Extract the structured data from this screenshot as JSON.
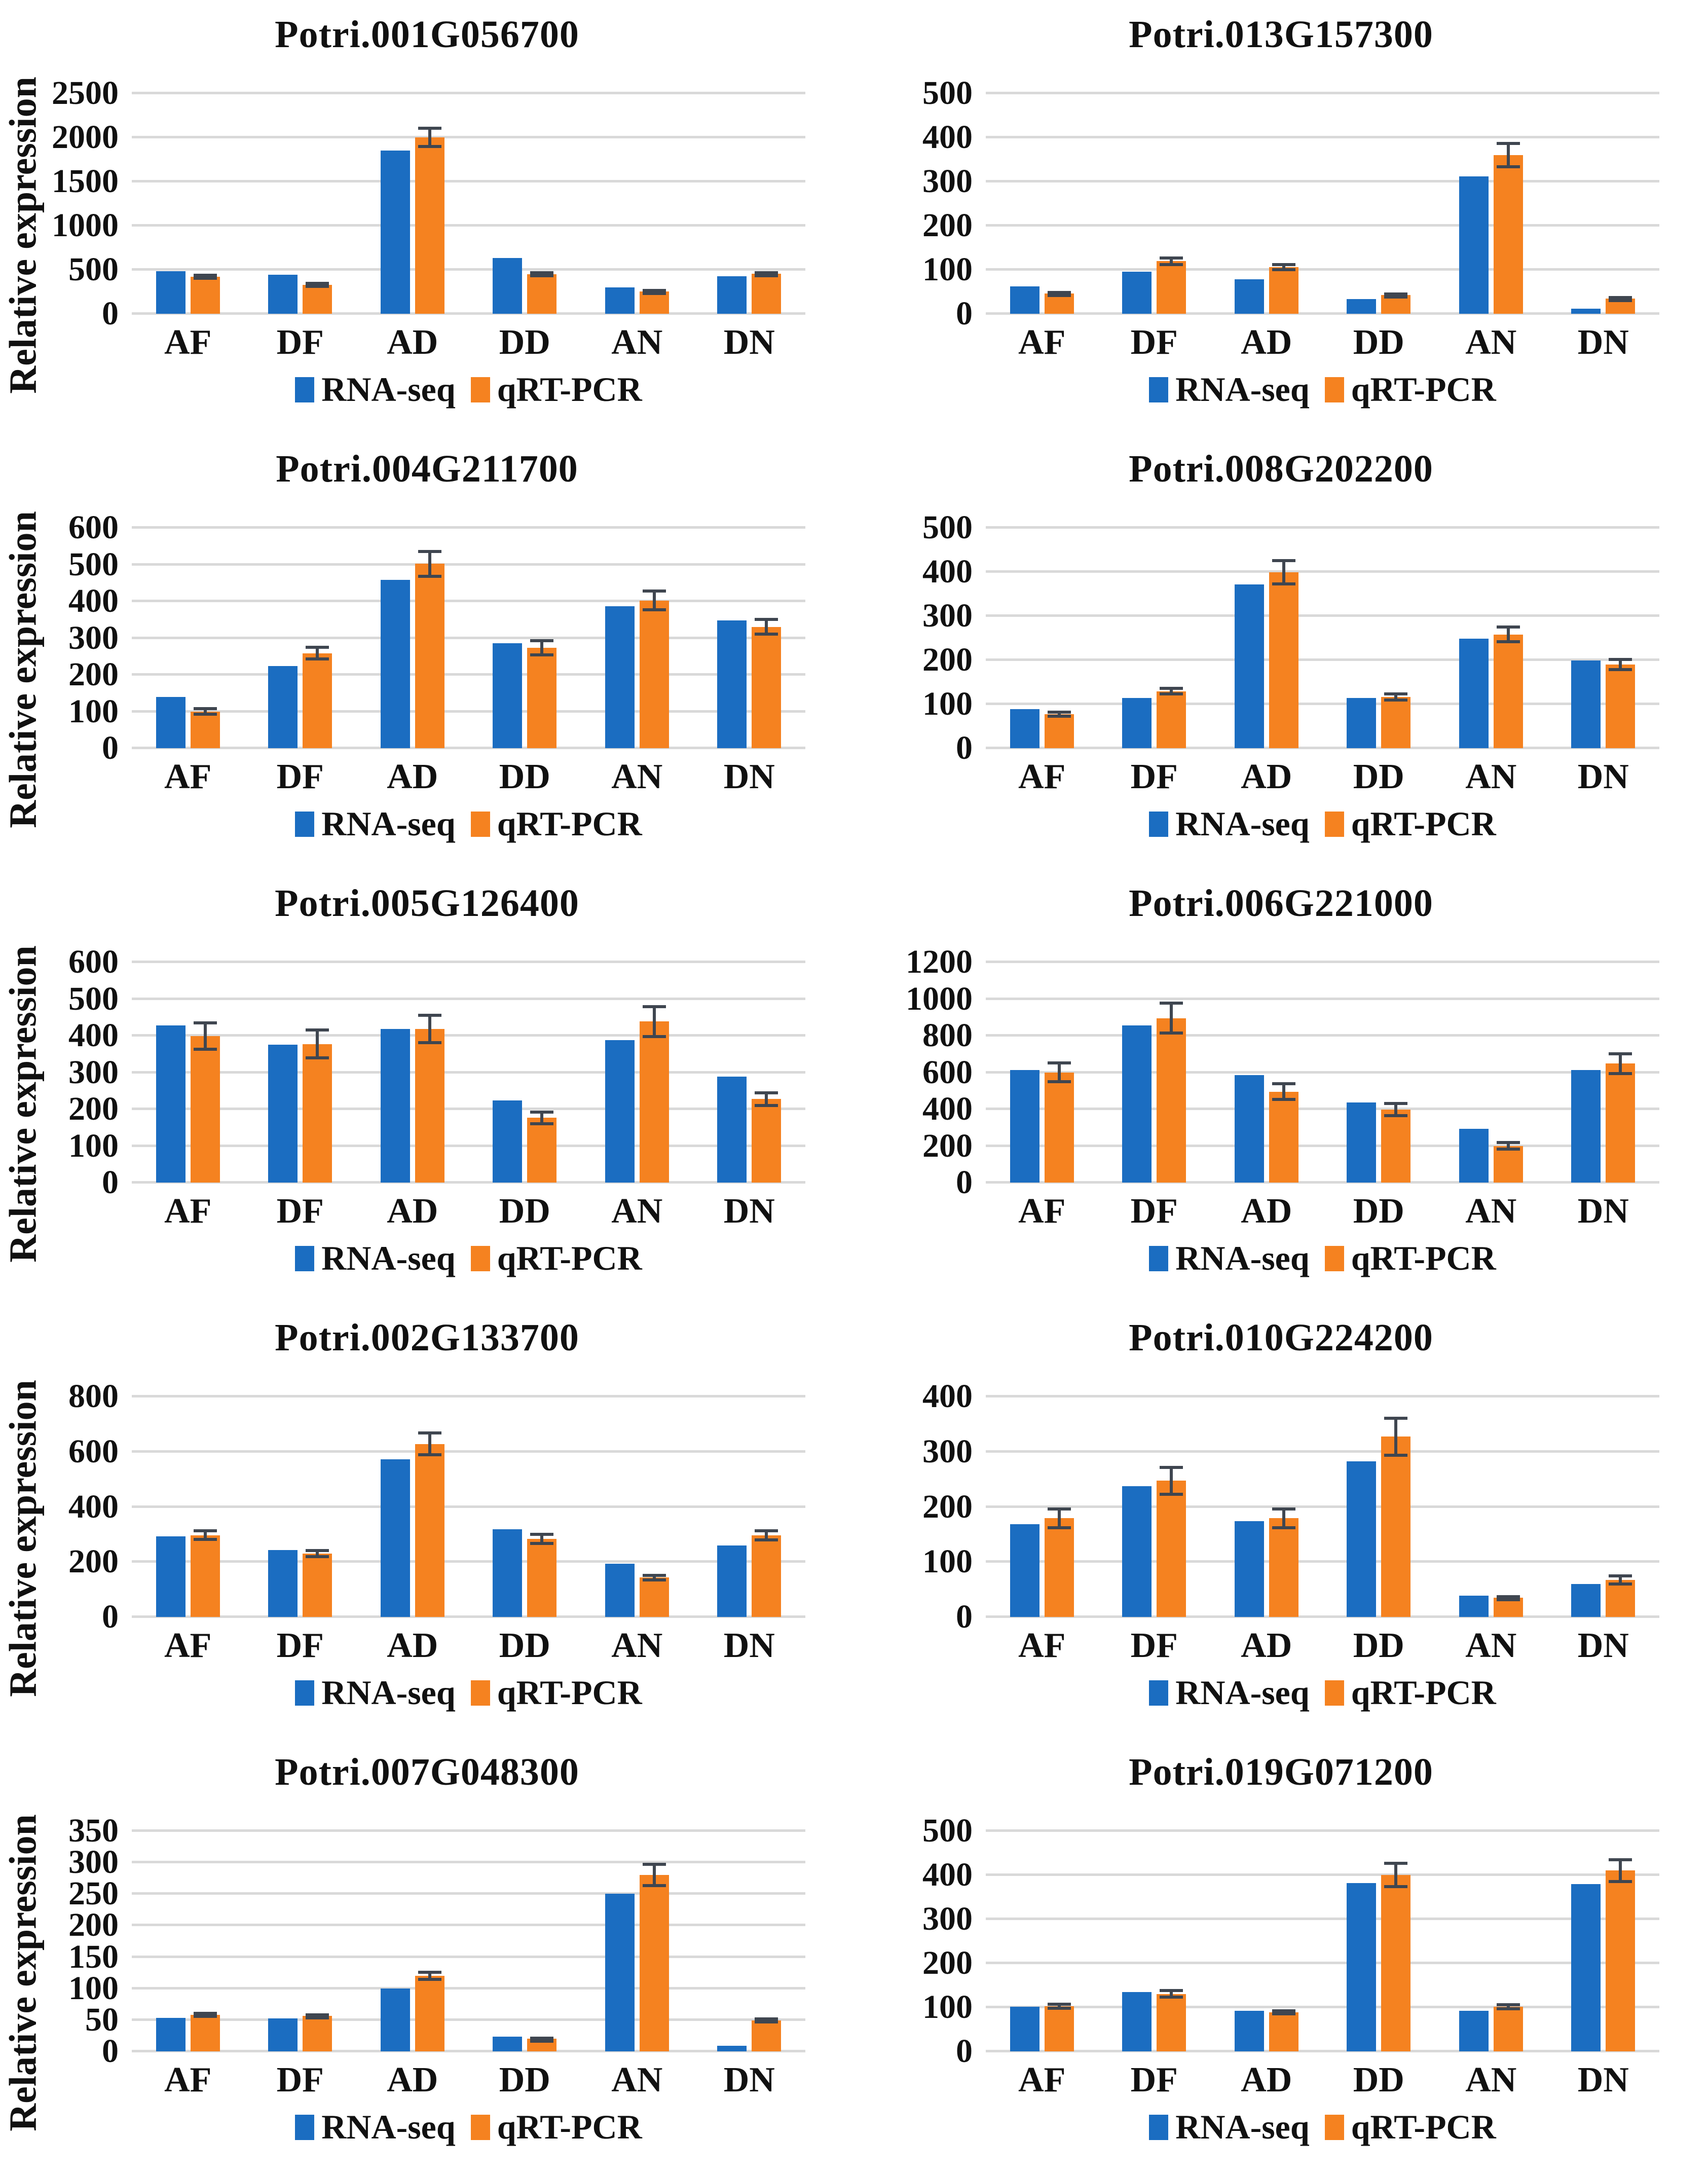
{
  "figure": {
    "ylabel": "Relative expression",
    "colors": {
      "rna_seq": "#1b6dc1",
      "qrt_pcr": "#f58220",
      "gridline": "#d9d9d9",
      "error_bar": "#3f4650",
      "text": "#111111",
      "background": "#ffffff"
    },
    "legend": [
      {
        "label": "RNA-seq",
        "color": "#1b6dc1"
      },
      {
        "label": "qRT-PCR",
        "color": "#f58220"
      }
    ]
  },
  "chart_data": [
    {
      "type": "bar",
      "title": "Potri.001G056700",
      "categories": [
        "AF",
        "DF",
        "AD",
        "DD",
        "AN",
        "DN"
      ],
      "ylim": [
        0,
        2500
      ],
      "yticks": [
        0,
        500,
        1000,
        1500,
        2000,
        2500
      ],
      "show_ylabel": true,
      "series": [
        {
          "name": "RNA-seq",
          "values": [
            480,
            440,
            1850,
            630,
            300,
            425
          ]
        },
        {
          "name": "qRT-PCR",
          "values": [
            420,
            330,
            2000,
            450,
            255,
            455
          ],
          "errors": [
            35,
            35,
            120,
            30,
            25,
            30
          ]
        }
      ]
    },
    {
      "type": "bar",
      "title": "Potri.013G157300",
      "categories": [
        "AF",
        "DF",
        "AD",
        "DD",
        "AN",
        "DN"
      ],
      "ylim": [
        0,
        500
      ],
      "yticks": [
        0,
        100,
        200,
        300,
        400,
        500
      ],
      "show_ylabel": false,
      "series": [
        {
          "name": "RNA-seq",
          "values": [
            62,
            95,
            78,
            33,
            312,
            11
          ]
        },
        {
          "name": "qRT-PCR",
          "values": [
            46,
            119,
            106,
            43,
            360,
            35
          ],
          "errors": [
            6,
            11,
            9,
            5,
            30,
            5
          ]
        }
      ]
    },
    {
      "type": "bar",
      "title": "Potri.004G211700",
      "categories": [
        "AF",
        "DF",
        "AD",
        "DD",
        "AN",
        "DN"
      ],
      "ylim": [
        0,
        600
      ],
      "yticks": [
        0,
        100,
        200,
        300,
        400,
        500,
        600
      ],
      "show_ylabel": true,
      "series": [
        {
          "name": "RNA-seq",
          "values": [
            140,
            223,
            458,
            285,
            386,
            348
          ]
        },
        {
          "name": "qRT-PCR",
          "values": [
            100,
            258,
            502,
            273,
            402,
            330
          ],
          "errors": [
            12,
            20,
            38,
            24,
            30,
            24
          ]
        }
      ]
    },
    {
      "type": "bar",
      "title": "Potri.008G202200",
      "categories": [
        "AF",
        "DF",
        "AD",
        "DD",
        "AN",
        "DN"
      ],
      "ylim": [
        0,
        500
      ],
      "yticks": [
        0,
        100,
        200,
        300,
        400,
        500
      ],
      "show_ylabel": false,
      "series": [
        {
          "name": "RNA-seq",
          "values": [
            89,
            114,
            371,
            114,
            248,
            199
          ]
        },
        {
          "name": "qRT-PCR",
          "values": [
            77,
            129,
            399,
            116,
            258,
            190
          ],
          "errors": [
            8,
            10,
            30,
            10,
            20,
            15
          ]
        }
      ]
    },
    {
      "type": "bar",
      "title": "Potri.005G126400",
      "categories": [
        "AF",
        "DF",
        "AD",
        "DD",
        "AN",
        "DN"
      ],
      "ylim": [
        0,
        600
      ],
      "yticks": [
        0,
        100,
        200,
        300,
        400,
        500,
        600
      ],
      "show_ylabel": true,
      "series": [
        {
          "name": "RNA-seq",
          "values": [
            427,
            375,
            418,
            223,
            387,
            288
          ]
        },
        {
          "name": "qRT-PCR",
          "values": [
            398,
            377,
            418,
            176,
            438,
            227
          ],
          "errors": [
            40,
            42,
            42,
            20,
            45,
            22
          ]
        }
      ]
    },
    {
      "type": "bar",
      "title": "Potri.006G221000",
      "categories": [
        "AF",
        "DF",
        "AD",
        "DD",
        "AN",
        "DN"
      ],
      "ylim": [
        0,
        1200
      ],
      "yticks": [
        0,
        200,
        400,
        600,
        800,
        1000,
        1200
      ],
      "show_ylabel": false,
      "series": [
        {
          "name": "RNA-seq",
          "values": [
            613,
            855,
            586,
            435,
            292,
            613
          ]
        },
        {
          "name": "qRT-PCR",
          "values": [
            600,
            895,
            495,
            398,
            200,
            648
          ],
          "errors": [
            60,
            90,
            50,
            42,
            25,
            62
          ]
        }
      ]
    },
    {
      "type": "bar",
      "title": "Potri.002G133700",
      "categories": [
        "AF",
        "DF",
        "AD",
        "DD",
        "AN",
        "DN"
      ],
      "ylim": [
        0,
        800
      ],
      "yticks": [
        0,
        200,
        400,
        600,
        800
      ],
      "show_ylabel": true,
      "series": [
        {
          "name": "RNA-seq",
          "values": [
            292,
            242,
            572,
            318,
            194,
            260
          ]
        },
        {
          "name": "qRT-PCR",
          "values": [
            297,
            230,
            628,
            284,
            143,
            296
          ],
          "errors": [
            22,
            16,
            45,
            22,
            14,
            22
          ]
        }
      ]
    },
    {
      "type": "bar",
      "title": "Potri.010G224200",
      "categories": [
        "AF",
        "DF",
        "AD",
        "DD",
        "AN",
        "DN"
      ],
      "ylim": [
        0,
        400
      ],
      "yticks": [
        0,
        100,
        200,
        300,
        400
      ],
      "show_ylabel": false,
      "series": [
        {
          "name": "RNA-seq",
          "values": [
            168,
            237,
            174,
            282,
            39,
            60
          ]
        },
        {
          "name": "qRT-PCR",
          "values": [
            179,
            247,
            179,
            327,
            35,
            67
          ],
          "errors": [
            20,
            27,
            20,
            36,
            5,
            10
          ]
        }
      ]
    },
    {
      "type": "bar",
      "title": "Potri.007G048300",
      "categories": [
        "AF",
        "DF",
        "AD",
        "DD",
        "AN",
        "DN"
      ],
      "ylim": [
        0,
        350
      ],
      "yticks": [
        0,
        50,
        100,
        150,
        200,
        250,
        300,
        350
      ],
      "show_ylabel": true,
      "series": [
        {
          "name": "RNA-seq",
          "values": [
            53,
            52,
            100,
            23,
            250,
            9
          ]
        },
        {
          "name": "qRT-PCR",
          "values": [
            58,
            56,
            120,
            20,
            280,
            49
          ],
          "errors": [
            5,
            4,
            8,
            3,
            19,
            5
          ]
        }
      ]
    },
    {
      "type": "bar",
      "title": "Potri.019G071200",
      "categories": [
        "AF",
        "DF",
        "AD",
        "DD",
        "AN",
        "DN"
      ],
      "ylim": [
        0,
        500
      ],
      "yticks": [
        0,
        100,
        200,
        300,
        400,
        500
      ],
      "show_ylabel": false,
      "series": [
        {
          "name": "RNA-seq",
          "values": [
            101,
            134,
            92,
            382,
            92,
            379
          ]
        },
        {
          "name": "qRT-PCR",
          "values": [
            102,
            130,
            89,
            400,
            101,
            410
          ],
          "errors": [
            8,
            11,
            7,
            30,
            8,
            28
          ]
        }
      ]
    }
  ]
}
